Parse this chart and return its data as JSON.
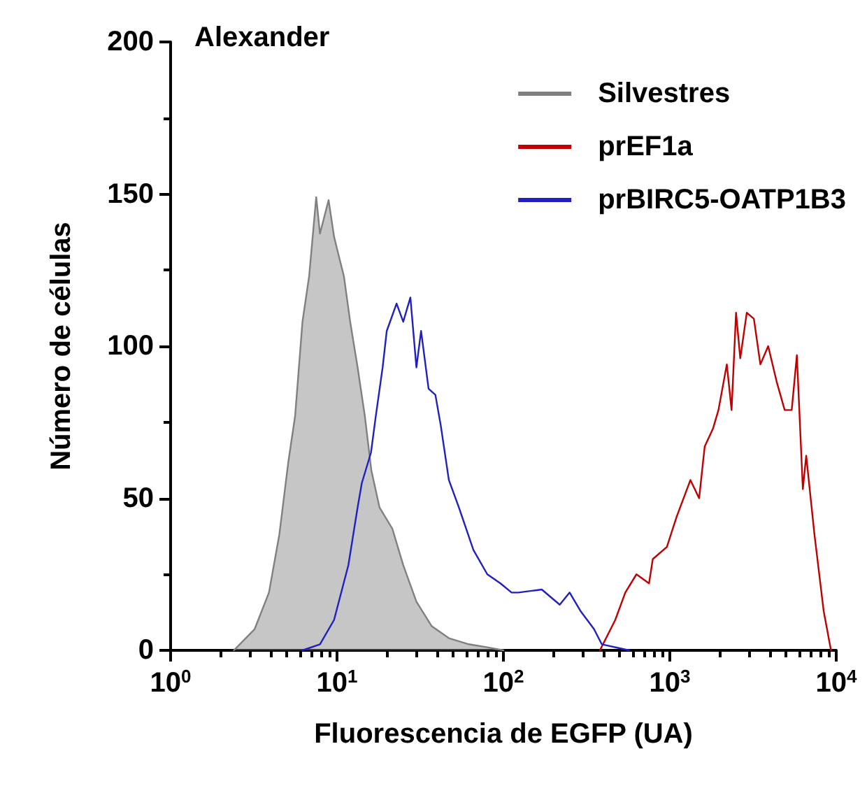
{
  "chart_data": {
    "type": "line",
    "title": "Alexander",
    "xlabel": "Fluorescencia de EGFP (UA)",
    "ylabel": "Número de células",
    "log": "x",
    "grid": false,
    "legend": "top right",
    "marker": "none",
    "line_style": "solid",
    "xlim": [
      1,
      10000
    ],
    "ylim": [
      0,
      200
    ],
    "xticks": [
      {
        "value": 1,
        "label": "10$^{0}$"
      },
      {
        "value": 2,
        "label": null
      },
      {
        "value": 3,
        "label": null
      },
      {
        "value": 4,
        "label": null
      },
      {
        "value": 5,
        "label": null
      },
      {
        "value": 6,
        "label": null
      },
      {
        "value": 7,
        "label": null
      },
      {
        "value": 8,
        "label": null
      },
      {
        "value": 9,
        "label": null
      },
      {
        "value": 10,
        "label": "10$^{1}$"
      },
      {
        "value": 20,
        "label": null
      },
      {
        "value": 30,
        "label": null
      },
      {
        "value": 40,
        "label": null
      },
      {
        "value": 50,
        "label": null
      },
      {
        "value": 60,
        "label": null
      },
      {
        "value": 70,
        "label": null
      },
      {
        "value": 80,
        "label": null
      },
      {
        "value": 90,
        "label": null
      },
      {
        "value": 100,
        "label": "10$^{2}$"
      },
      {
        "value": 200,
        "label": null
      },
      {
        "value": 300,
        "label": null
      },
      {
        "value": 400,
        "label": null
      },
      {
        "value": 500,
        "label": null
      },
      {
        "value": 600,
        "label": null
      },
      {
        "value": 700,
        "label": null
      },
      {
        "value": 800,
        "label": null
      },
      {
        "value": 900,
        "label": null
      },
      {
        "value": 1000,
        "label": "10$^{3}$"
      },
      {
        "value": 2000,
        "label": null
      },
      {
        "value": 3000,
        "label": null
      },
      {
        "value": 4000,
        "label": null
      },
      {
        "value": 5000,
        "label": null
      },
      {
        "value": 6000,
        "label": null
      },
      {
        "value": 7000,
        "label": null
      },
      {
        "value": 8000,
        "label": null
      },
      {
        "value": 9000,
        "label": null
      },
      {
        "value": 10000,
        "label": "10$^{4}$"
      }
    ],
    "yticks": [
      0,
      {
        "value": 25,
        "label": null
      },
      50,
      {
        "value": 75,
        "label": null
      },
      100,
      {
        "value": 125,
        "label": null
      },
      150,
      {
        "value": 175,
        "label": null
      },
      200
    ],
    "series": [
      {
        "name": "Silvestres",
        "type": "area",
        "color": "#808080",
        "x": [
          2.4,
          3.2,
          3.9,
          4.5,
          5.1,
          5.6,
          6.2,
          6.8,
          7.5,
          7.9,
          8.9,
          9.6,
          10,
          11,
          12,
          13.3,
          14.7,
          16.1,
          18,
          21.5,
          25,
          30,
          37,
          47,
          62,
          80,
          100
        ],
        "values": [
          0,
          7,
          19,
          38,
          62,
          77,
          108,
          123,
          149,
          137,
          148,
          136,
          132,
          123,
          108,
          93,
          77,
          59,
          47,
          40,
          28,
          16,
          8,
          4,
          2,
          1,
          0
        ]
      },
      {
        "name": "prEF1a",
        "color": "#c00000",
        "x": [
          380,
          470,
          540,
          630,
          750,
          790,
          960,
          1100,
          1330,
          1500,
          1620,
          1820,
          1960,
          2200,
          2350,
          2500,
          2650,
          2900,
          3200,
          3500,
          3900,
          4400,
          4900,
          5400,
          5800,
          6300,
          6600,
          7400,
          8400,
          9300
        ],
        "values": [
          0,
          10,
          19,
          25,
          22,
          30,
          34,
          44,
          56,
          50,
          67,
          73,
          79,
          94,
          79,
          111,
          96,
          111,
          109,
          94,
          100,
          88,
          79,
          79,
          97,
          53,
          64,
          38,
          13,
          0
        ]
      },
      {
        "name": "prBIRC5-OATP1B3",
        "color": "#2020c0",
        "x": [
          6.2,
          7.9,
          9.6,
          11.7,
          13.3,
          14.1,
          16,
          17.1,
          18.8,
          19.9,
          22.8,
          25,
          27.6,
          30,
          32,
          35.5,
          39,
          42,
          47,
          54,
          66,
          80,
          96,
          112,
          123,
          170,
          218,
          250,
          290,
          350,
          390,
          570
        ],
        "values": [
          0,
          2,
          10,
          28,
          47,
          55,
          65,
          77,
          93,
          105,
          114,
          108,
          116,
          93,
          105,
          86,
          84,
          74,
          56,
          47,
          33,
          25,
          22,
          19,
          19,
          20,
          15,
          19,
          13,
          7,
          2,
          0
        ]
      }
    ]
  }
}
